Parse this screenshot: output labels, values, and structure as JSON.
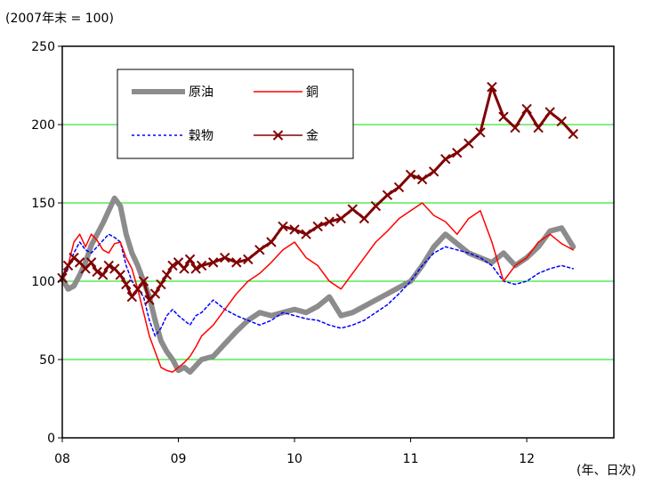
{
  "chart_data": {
    "type": "line",
    "unit_label": "(2007年末 = 100)",
    "xlabel": "(年、日次)",
    "x_categories": [
      "08",
      "09",
      "10",
      "11",
      "12"
    ],
    "x_range": [
      2008.0,
      2012.75
    ],
    "ylim": [
      0,
      250
    ],
    "yticks": [
      0,
      50,
      100,
      150,
      200,
      250
    ],
    "grid": true,
    "grid_color": "#00e000",
    "legend": "top-left",
    "series": [
      {
        "name": "原油",
        "color": "#8c8c8c",
        "style": "thick",
        "x": [
          2008.0,
          2008.05,
          2008.1,
          2008.15,
          2008.2,
          2008.25,
          2008.3,
          2008.35,
          2008.4,
          2008.45,
          2008.5,
          2008.55,
          2008.6,
          2008.65,
          2008.7,
          2008.75,
          2008.8,
          2008.85,
          2008.9,
          2008.95,
          2009.0,
          2009.05,
          2009.1,
          2009.15,
          2009.2,
          2009.3,
          2009.4,
          2009.5,
          2009.6,
          2009.7,
          2009.8,
          2009.9,
          2010.0,
          2010.1,
          2010.2,
          2010.3,
          2010.4,
          2010.5,
          2010.6,
          2010.7,
          2010.8,
          2010.9,
          2011.0,
          2011.1,
          2011.2,
          2011.3,
          2011.4,
          2011.5,
          2011.6,
          2011.7,
          2011.8,
          2011.9,
          2012.0,
          2012.1,
          2012.2,
          2012.3,
          2012.4
        ],
        "y": [
          102,
          95,
          97,
          104,
          112,
          123,
          130,
          137,
          145,
          153,
          148,
          130,
          118,
          110,
          100,
          90,
          75,
          62,
          55,
          50,
          43,
          45,
          42,
          46,
          50,
          52,
          60,
          68,
          75,
          80,
          78,
          80,
          82,
          80,
          84,
          90,
          78,
          80,
          84,
          88,
          92,
          96,
          100,
          110,
          122,
          130,
          124,
          118,
          115,
          112,
          118,
          110,
          115,
          122,
          132,
          134,
          122
        ]
      },
      {
        "name": "銅",
        "color": "#ff0000",
        "style": "solid",
        "x": [
          2008.0,
          2008.05,
          2008.1,
          2008.15,
          2008.2,
          2008.25,
          2008.3,
          2008.35,
          2008.4,
          2008.45,
          2008.5,
          2008.55,
          2008.6,
          2008.65,
          2008.7,
          2008.75,
          2008.8,
          2008.85,
          2008.9,
          2008.95,
          2009.0,
          2009.05,
          2009.1,
          2009.15,
          2009.2,
          2009.3,
          2009.4,
          2009.5,
          2009.6,
          2009.7,
          2009.8,
          2009.9,
          2010.0,
          2010.1,
          2010.2,
          2010.3,
          2010.4,
          2010.5,
          2010.6,
          2010.7,
          2010.8,
          2010.9,
          2011.0,
          2011.1,
          2011.2,
          2011.3,
          2011.4,
          2011.5,
          2011.6,
          2011.7,
          2011.8,
          2011.9,
          2012.0,
          2012.1,
          2012.2,
          2012.3,
          2012.4
        ],
        "y": [
          100,
          110,
          125,
          130,
          122,
          130,
          126,
          120,
          118,
          124,
          125,
          115,
          108,
          95,
          80,
          65,
          55,
          45,
          43,
          42,
          45,
          48,
          52,
          58,
          65,
          72,
          82,
          92,
          100,
          105,
          112,
          120,
          125,
          115,
          110,
          100,
          95,
          105,
          115,
          125,
          132,
          140,
          145,
          150,
          142,
          138,
          130,
          140,
          145,
          125,
          100,
          110,
          115,
          125,
          130,
          124,
          120
        ]
      },
      {
        "name": "穀物",
        "color": "#0000ff",
        "style": "dotted",
        "x": [
          2008.0,
          2008.05,
          2008.1,
          2008.15,
          2008.2,
          2008.25,
          2008.3,
          2008.35,
          2008.4,
          2008.45,
          2008.5,
          2008.55,
          2008.6,
          2008.65,
          2008.7,
          2008.75,
          2008.8,
          2008.85,
          2008.9,
          2008.95,
          2009.0,
          2009.05,
          2009.1,
          2009.15,
          2009.2,
          2009.3,
          2009.4,
          2009.5,
          2009.6,
          2009.7,
          2009.8,
          2009.9,
          2010.0,
          2010.1,
          2010.2,
          2010.3,
          2010.4,
          2010.5,
          2010.6,
          2010.7,
          2010.8,
          2010.9,
          2011.0,
          2011.1,
          2011.2,
          2011.3,
          2011.4,
          2011.5,
          2011.6,
          2011.7,
          2011.8,
          2011.9,
          2012.0,
          2012.1,
          2012.2,
          2012.3,
          2012.4
        ],
        "y": [
          100,
          108,
          118,
          125,
          120,
          118,
          122,
          126,
          130,
          128,
          125,
          110,
          100,
          95,
          90,
          75,
          65,
          70,
          78,
          82,
          78,
          75,
          72,
          78,
          80,
          88,
          82,
          78,
          75,
          72,
          75,
          80,
          78,
          76,
          75,
          72,
          70,
          72,
          75,
          80,
          85,
          92,
          100,
          110,
          118,
          122,
          120,
          118,
          115,
          110,
          100,
          98,
          100,
          105,
          108,
          110,
          108
        ]
      },
      {
        "name": "金",
        "color": "#800000",
        "style": "x-markers",
        "x": [
          2008.0,
          2008.05,
          2008.1,
          2008.15,
          2008.2,
          2008.25,
          2008.3,
          2008.35,
          2008.4,
          2008.45,
          2008.5,
          2008.55,
          2008.6,
          2008.65,
          2008.7,
          2008.75,
          2008.8,
          2008.85,
          2008.9,
          2008.95,
          2009.0,
          2009.05,
          2009.1,
          2009.15,
          2009.2,
          2009.3,
          2009.4,
          2009.5,
          2009.6,
          2009.7,
          2009.8,
          2009.9,
          2010.0,
          2010.1,
          2010.2,
          2010.3,
          2010.4,
          2010.5,
          2010.6,
          2010.7,
          2010.8,
          2010.9,
          2011.0,
          2011.1,
          2011.2,
          2011.3,
          2011.4,
          2011.5,
          2011.6,
          2011.7,
          2011.8,
          2011.9,
          2012.0,
          2012.1,
          2012.2,
          2012.3,
          2012.4
        ],
        "y": [
          102,
          110,
          115,
          112,
          108,
          112,
          106,
          104,
          110,
          108,
          104,
          98,
          90,
          95,
          100,
          88,
          92,
          98,
          104,
          110,
          112,
          108,
          114,
          108,
          110,
          112,
          115,
          112,
          114,
          120,
          125,
          135,
          133,
          130,
          135,
          138,
          140,
          146,
          140,
          148,
          155,
          160,
          168,
          165,
          170,
          178,
          182,
          188,
          195,
          224,
          205,
          198,
          210,
          198,
          208,
          202,
          194
        ]
      }
    ]
  }
}
